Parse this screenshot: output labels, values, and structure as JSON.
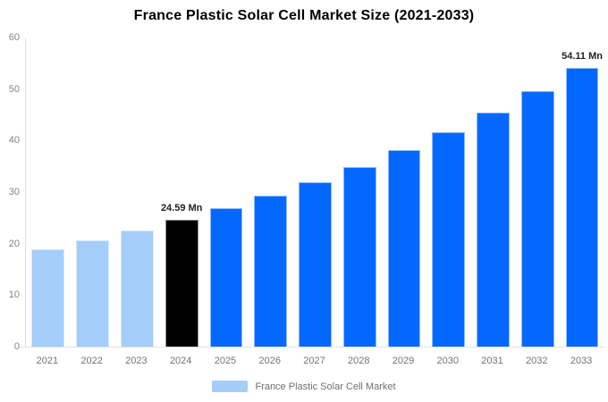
{
  "title": "France Plastic Solar Cell Market Size (2021-2033)",
  "legend": {
    "label": "France Plastic Solar Cell Market",
    "swatch_color": "#a4cdf9"
  },
  "colors": {
    "bar_past": "#a4cdf9",
    "bar_highlight": "#000000",
    "bar_forecast": "#0568fe",
    "axis_line": "#e0e0e0",
    "tick_label": "#848484",
    "category_label": "#737373",
    "value_label": "#222222"
  },
  "chart_data": {
    "type": "bar",
    "title": "France Plastic Solar Cell Market Size (2021-2033)",
    "categories": [
      "2021",
      "2022",
      "2023",
      "2024",
      "2025",
      "2026",
      "2027",
      "2028",
      "2029",
      "2030",
      "2031",
      "2032",
      "2033"
    ],
    "values": [
      18.9,
      20.63,
      22.52,
      24.59,
      26.84,
      29.3,
      31.99,
      34.92,
      38.12,
      41.61,
      45.42,
      49.58,
      54.11
    ],
    "unit": "Mn",
    "bar_colors": [
      "#a4cdf9",
      "#a4cdf9",
      "#a4cdf9",
      "#000000",
      "#0568fe",
      "#0568fe",
      "#0568fe",
      "#0568fe",
      "#0568fe",
      "#0568fe",
      "#0568fe",
      "#0568fe",
      "#0568fe"
    ],
    "annotations": [
      {
        "index": 3,
        "label": "24.59 Mn"
      },
      {
        "index": 12,
        "label": "54.11 Mn"
      }
    ],
    "xlabel": "",
    "ylabel": "",
    "ylim": [
      0,
      60
    ],
    "ytick_step": 10,
    "grid": false,
    "legend_position": "bottom",
    "legend_entries": [
      "France Plastic Solar Cell Market"
    ]
  }
}
